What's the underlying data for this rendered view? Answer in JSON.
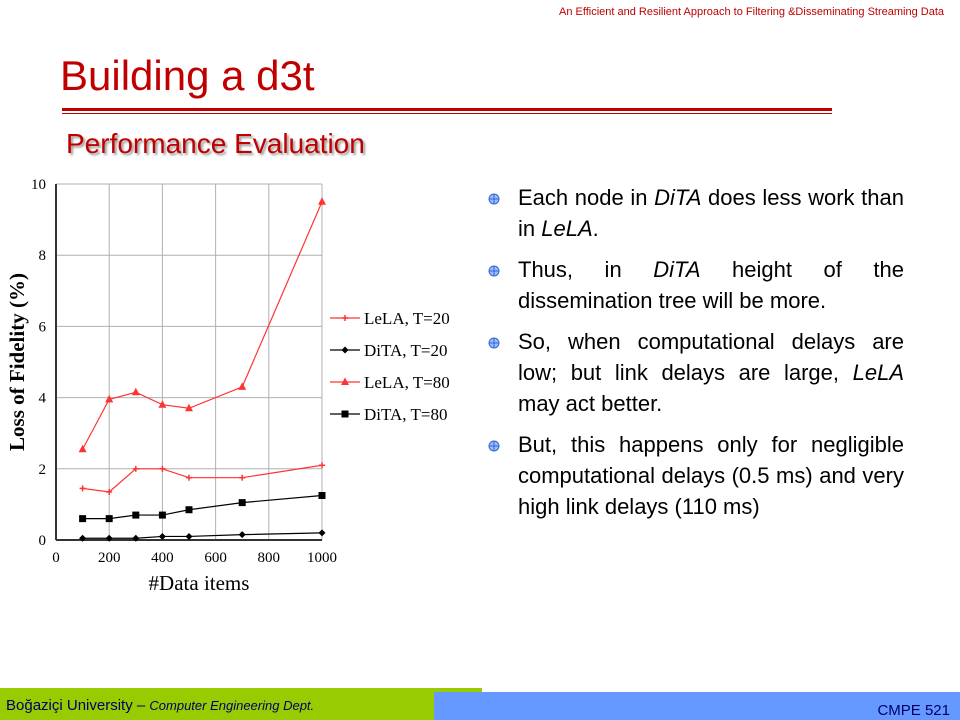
{
  "header_note": "An Efficient and Resilient Approach to Filtering &Disseminating Streaming Data",
  "title": "Building a d3t",
  "subtitle": "Performance Evaluation",
  "bullets": [
    {
      "segments": [
        {
          "text": "Each node in "
        },
        {
          "text": "DiTA",
          "italic": true
        },
        {
          "text": " does less work than in "
        },
        {
          "text": "LeLA",
          "italic": true
        },
        {
          "text": "."
        }
      ]
    },
    {
      "segments": [
        {
          "text": "Thus, in "
        },
        {
          "text": "DiTA",
          "italic": true
        },
        {
          "text": " height of the dissemination tree will be more."
        }
      ]
    },
    {
      "segments": [
        {
          "text": "So, when computational delays are low; but link delays are large, "
        },
        {
          "text": "LeLA",
          "italic": true
        },
        {
          "text": " may act better."
        }
      ]
    },
    {
      "segments": [
        {
          "text": "But, this happens only for negligible computational delays (0.5 ms) and very high link delays (110 ms)"
        }
      ]
    }
  ],
  "footer": {
    "university": "Boğaziçi University – ",
    "dept": "Computer Engineering Dept.",
    "course": "CMPE 521"
  },
  "colors": {
    "accent": "#c00000",
    "footer_green": "#99cc00",
    "footer_blue": "#6699ff",
    "series_red": "#ff3333",
    "series_black": "#000000"
  },
  "chart_data": {
    "type": "line",
    "xlabel": "#Data items",
    "ylabel": "Loss of Fidelity (%)",
    "xlim": [
      0,
      1000
    ],
    "ylim": [
      0,
      10
    ],
    "xticks": [
      0,
      200,
      400,
      600,
      800,
      1000
    ],
    "yticks": [
      0,
      2,
      4,
      6,
      8,
      10
    ],
    "grid": true,
    "legend_position": "right",
    "series": [
      {
        "name": "LeLA, T=20",
        "color": "#ff3333",
        "marker": "plus",
        "x": [
          100,
          200,
          300,
          400,
          500,
          700,
          1000
        ],
        "y": [
          1.45,
          1.35,
          2.0,
          2.0,
          1.75,
          1.75,
          2.1
        ]
      },
      {
        "name": "DiTA, T=20",
        "color": "#000000",
        "marker": "diamond",
        "x": [
          100,
          200,
          300,
          400,
          500,
          700,
          1000
        ],
        "y": [
          0.05,
          0.05,
          0.05,
          0.1,
          0.1,
          0.15,
          0.2
        ]
      },
      {
        "name": "LeLA, T=80",
        "color": "#ff3333",
        "marker": "triangle",
        "x": [
          100,
          200,
          300,
          400,
          500,
          700,
          1000
        ],
        "y": [
          2.55,
          3.95,
          4.15,
          3.8,
          3.7,
          4.3,
          9.5
        ]
      },
      {
        "name": "DiTA, T=80",
        "color": "#000000",
        "marker": "square",
        "x": [
          100,
          200,
          300,
          400,
          500,
          700,
          1000
        ],
        "y": [
          0.6,
          0.6,
          0.7,
          0.7,
          0.85,
          1.05,
          1.25
        ]
      }
    ]
  }
}
